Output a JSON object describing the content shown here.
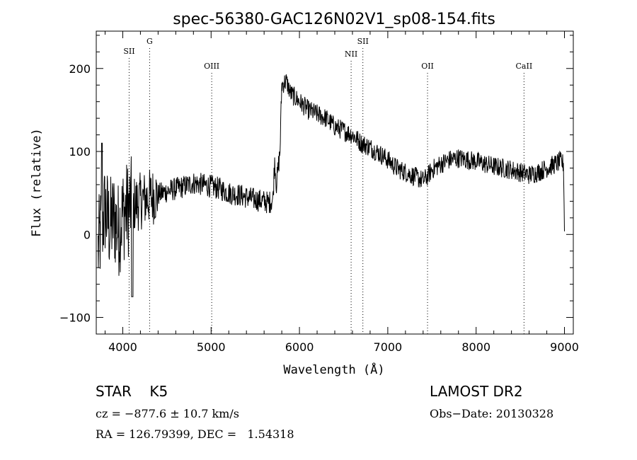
{
  "chart_data": {
    "type": "line",
    "title": "spec-56380-GAC126N02V1_sp08-154.fits",
    "xlabel": "Wavelength (Å)",
    "ylabel": "Flux (relative)",
    "xlim": [
      3700,
      9100
    ],
    "ylim": [
      -120,
      245
    ],
    "xticks": [
      4000,
      5000,
      6000,
      7000,
      8000,
      9000
    ],
    "yticks": [
      -100,
      0,
      100,
      200
    ],
    "grid": false,
    "series": [
      {
        "x": [
          3720,
          3760,
          3800,
          3850,
          3900,
          3950,
          4000,
          4050,
          4100,
          4200,
          4300,
          4400,
          4500,
          4600,
          4700,
          4800,
          4900,
          5000,
          5100,
          5200,
          5300,
          5400,
          5500,
          5600,
          5650,
          5700,
          5720,
          5740,
          5760,
          5780,
          5800,
          5850,
          5900,
          6000,
          6100,
          6200,
          6300,
          6400,
          6500,
          6600,
          6700,
          6800,
          6900,
          7000,
          7100,
          7200,
          7300,
          7400,
          7450,
          7500,
          7600,
          7700,
          7800,
          7900,
          8000,
          8100,
          8200,
          8300,
          8400,
          8500,
          8600,
          8700,
          8800,
          8900,
          8950,
          8990,
          9000
        ],
        "y": [
          -20,
          10,
          30,
          10,
          20,
          5,
          25,
          30,
          35,
          40,
          45,
          48,
          52,
          55,
          58,
          62,
          60,
          58,
          55,
          50,
          48,
          45,
          42,
          40,
          38,
          42,
          90,
          60,
          80,
          100,
          180,
          185,
          170,
          160,
          150,
          145,
          140,
          130,
          125,
          120,
          110,
          105,
          98,
          90,
          80,
          75,
          70,
          65,
          70,
          78,
          85,
          90,
          92,
          90,
          88,
          85,
          82,
          80,
          78,
          75,
          72,
          75,
          80,
          85,
          88,
          85,
          5
        ]
      }
    ]
  },
  "lines": {
    "labels": [
      "SII",
      "G",
      "OIII",
      "NII",
      "SII",
      "OII",
      "CaII"
    ],
    "wavelengths": [
      4072,
      4304,
      5007,
      6585,
      6718,
      7450,
      8542
    ]
  },
  "info": {
    "class": "STAR    K5",
    "release": "LAMOST DR2",
    "cz": "cz = −877.6 ± 10.7 km/s",
    "obs_date": "Obs−Date: 20130328",
    "radec": "RA = 126.79399, DEC =   1.54318"
  }
}
